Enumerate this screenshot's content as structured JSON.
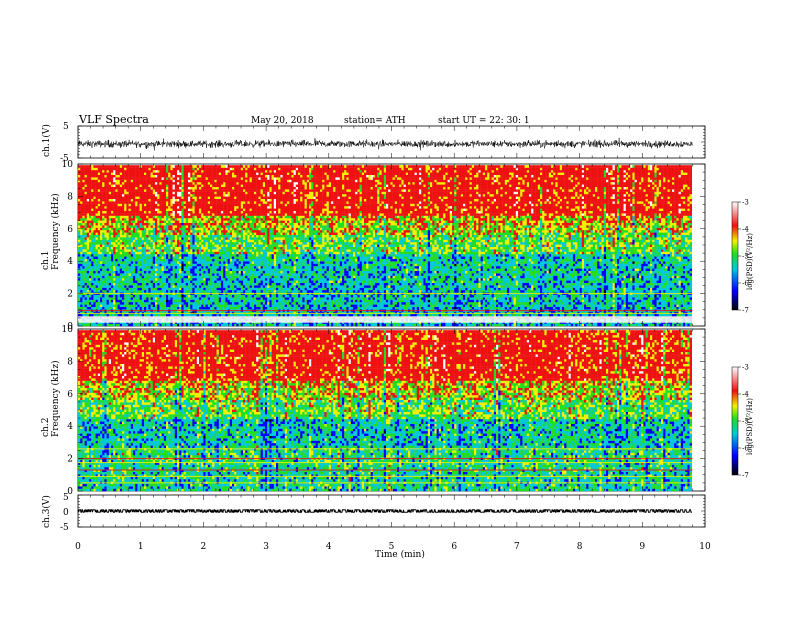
{
  "header": {
    "title": "VLF  Spectra",
    "date": "May 20, 2018",
    "station": "station= ATH",
    "start_ut": "start  UT  =    22: 30: 1"
  },
  "chart_data": [
    {
      "type": "line",
      "name": "ch1-waveform",
      "ylabel": "ch.1(V)",
      "ylim": [
        -5,
        5
      ],
      "yticks": [
        "5",
        "-5"
      ],
      "xlim": [
        0,
        10
      ],
      "data_end_min": 9.8,
      "amplitude_v": [
        -2.8,
        2.2
      ]
    },
    {
      "type": "heatmap",
      "name": "ch1-spectrogram",
      "ylabel": "Frequency  (kHz)",
      "channel_label": "ch.1",
      "ylim": [
        0,
        10
      ],
      "yticks": [
        "0",
        "2",
        "4",
        "6",
        "8",
        "10"
      ],
      "xlim": [
        0,
        10
      ],
      "data_end_min": 9.8,
      "colorbar": {
        "label": "log(PSD)(V²/Hz)",
        "range": [
          -7,
          -3
        ],
        "ticks": [
          "-3",
          "-4",
          "-5",
          "-6",
          "-7"
        ]
      }
    },
    {
      "type": "heatmap",
      "name": "ch2-spectrogram",
      "ylabel": "Frequency  (kHz)",
      "channel_label": "ch.2",
      "ylim": [
        0,
        10
      ],
      "yticks": [
        "0",
        "2",
        "4",
        "6",
        "8",
        "10"
      ],
      "xlim": [
        0,
        10
      ],
      "data_end_min": 9.8,
      "colorbar": {
        "label": "log(PSD)(V²/Hz)",
        "range": [
          -7,
          -3
        ],
        "ticks": [
          "-3",
          "-4",
          "-5",
          "-6",
          "-7"
        ]
      }
    },
    {
      "type": "line",
      "name": "ch3-waveform",
      "ylabel": "ch.3(V)",
      "ylim": [
        -5,
        5
      ],
      "yticks": [
        "5",
        "0",
        "-5"
      ],
      "xlim": [
        0,
        10
      ],
      "data_end_min": 9.8,
      "amplitude_v": [
        -0.4,
        0.4
      ]
    }
  ],
  "xaxis": {
    "label": "Time  (min)",
    "ticks": [
      "0",
      "1",
      "2",
      "3",
      "4",
      "5",
      "6",
      "7",
      "8",
      "9",
      "10"
    ]
  },
  "colors": {
    "low": "#000000",
    "blue": "#0000ff",
    "cyan": "#00c8d8",
    "green": "#22dd22",
    "yellow": "#f0f000",
    "red": "#ee1111",
    "high": "#ffffff"
  }
}
